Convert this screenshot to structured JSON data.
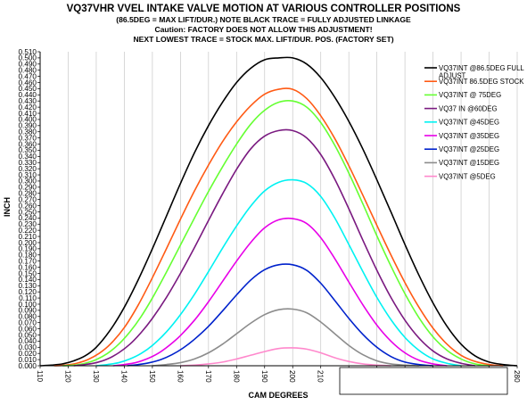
{
  "title_lines": [
    "VQ37VHR VVEL INTAKE VALVE MOTION AT VARIOUS CONTROLLER POSITIONS",
    "(86.5DEG = MAX  LIFT/DUR.) NOTE BLACK TRACE = FULLY ADJUSTED LINKAGE",
    "Caution: FACTORY DOES NOT ALLOW THIS ADJUSTMENT!",
    "NEXT LOWEST TRACE = STOCK MAX. LIFT/DUR.  POS. (FACTORY SET)"
  ],
  "chart_data": {
    "type": "line",
    "title": "VQ37VHR VVEL INTAKE VALVE MOTION AT VARIOUS CONTROLLER POSITIONS",
    "xlabel": "CAM DEGREES",
    "ylabel": "INCH",
    "xlim": [
      110,
      280
    ],
    "ylim": [
      0,
      0.51
    ],
    "xticks": [
      110,
      120,
      130,
      140,
      150,
      160,
      170,
      180,
      190,
      200,
      210,
      220,
      230,
      240,
      250,
      260,
      270,
      280
    ],
    "yticks": [
      "0.000",
      "0.010",
      "0.020",
      "0.030",
      "0.040",
      "0.050",
      "0.060",
      "0.070",
      "0.080",
      "0.090",
      "0.100",
      "0.110",
      "0.120",
      "0.130",
      "0.140",
      "0.150",
      "0.160",
      "0.170",
      "0.180",
      "0.190",
      "0.200",
      "0.210",
      "0.220",
      "0.230",
      "0.240",
      "0.250",
      "0.260",
      "0.270",
      "0.280",
      "0.290",
      "0.300",
      "0.310",
      "0.320",
      "0.330",
      "0.340",
      "0.350",
      "0.360",
      "0.370",
      "0.380",
      "0.390",
      "0.400",
      "0.410",
      "0.420",
      "0.430",
      "0.440",
      "0.450",
      "0.460",
      "0.470",
      "0.480",
      "0.490",
      "0.500",
      "0.510"
    ],
    "grid": "vertical",
    "legend_position": "right",
    "series": [
      {
        "name": "VQ37INT @86.5DEG FULL ADJUST",
        "color": "#000000",
        "x": [
          110,
          114,
          118,
          122,
          126,
          130,
          135,
          140,
          145,
          150,
          155,
          160,
          165,
          170,
          175,
          180,
          185,
          190,
          195,
          200,
          205,
          210,
          215,
          220,
          225,
          230,
          235,
          240,
          245,
          250,
          255,
          260,
          265,
          270,
          275,
          280
        ],
        "y": [
          0,
          0.001,
          0.003,
          0.008,
          0.016,
          0.03,
          0.058,
          0.095,
          0.14,
          0.19,
          0.243,
          0.296,
          0.346,
          0.39,
          0.428,
          0.46,
          0.483,
          0.497,
          0.5,
          0.5,
          0.49,
          0.468,
          0.436,
          0.397,
          0.352,
          0.302,
          0.25,
          0.197,
          0.147,
          0.102,
          0.064,
          0.035,
          0.016,
          0.006,
          0.002,
          0
        ]
      },
      {
        "name": "VQ37INT 86.5DEG STOCK",
        "color": "#ff5a14",
        "x": [
          115,
          119,
          123,
          127,
          131,
          135,
          140,
          145,
          150,
          155,
          160,
          165,
          170,
          175,
          180,
          185,
          190,
          195,
          200,
          205,
          210,
          215,
          220,
          225,
          230,
          235,
          240,
          245,
          250,
          255,
          260,
          265,
          270,
          275
        ],
        "y": [
          0,
          0.001,
          0.004,
          0.01,
          0.02,
          0.035,
          0.062,
          0.099,
          0.143,
          0.19,
          0.238,
          0.284,
          0.326,
          0.364,
          0.396,
          0.422,
          0.441,
          0.449,
          0.449,
          0.434,
          0.406,
          0.369,
          0.325,
          0.277,
          0.228,
          0.18,
          0.135,
          0.095,
          0.061,
          0.035,
          0.017,
          0.007,
          0.002,
          0
        ]
      },
      {
        "name": "VQ37INT @ 75DEG",
        "color": "#66ff33",
        "x": [
          118,
          122,
          126,
          130,
          134,
          138,
          142,
          146,
          150,
          155,
          160,
          165,
          170,
          175,
          180,
          185,
          190,
          195,
          200,
          205,
          210,
          215,
          220,
          225,
          230,
          235,
          240,
          245,
          250,
          255,
          260,
          265,
          270
        ],
        "y": [
          0,
          0.001,
          0.004,
          0.01,
          0.02,
          0.035,
          0.055,
          0.08,
          0.11,
          0.152,
          0.196,
          0.24,
          0.283,
          0.323,
          0.36,
          0.392,
          0.415,
          0.428,
          0.43,
          0.42,
          0.395,
          0.358,
          0.313,
          0.263,
          0.211,
          0.162,
          0.117,
          0.078,
          0.047,
          0.025,
          0.011,
          0.003,
          0
        ]
      },
      {
        "name": "VQ37 IN @60DEG",
        "color": "#7a1a80",
        "x": [
          122,
          126,
          130,
          134,
          138,
          142,
          146,
          150,
          155,
          160,
          165,
          170,
          175,
          180,
          185,
          190,
          195,
          200,
          205,
          210,
          215,
          220,
          225,
          230,
          235,
          240,
          245,
          250,
          255,
          260,
          265
        ],
        "y": [
          0,
          0.002,
          0.005,
          0.011,
          0.021,
          0.035,
          0.054,
          0.077,
          0.111,
          0.15,
          0.192,
          0.236,
          0.279,
          0.319,
          0.352,
          0.373,
          0.382,
          0.382,
          0.37,
          0.343,
          0.303,
          0.255,
          0.204,
          0.155,
          0.111,
          0.074,
          0.045,
          0.024,
          0.011,
          0.004,
          0
        ]
      },
      {
        "name": "VQ37INT @45DEG",
        "color": "#00f2f2",
        "x": [
          130,
          134,
          138,
          142,
          146,
          150,
          155,
          160,
          165,
          170,
          175,
          180,
          185,
          190,
          195,
          200,
          205,
          210,
          215,
          220,
          225,
          230,
          235,
          240,
          245,
          250,
          255,
          260
        ],
        "y": [
          0,
          0.002,
          0.005,
          0.011,
          0.02,
          0.033,
          0.055,
          0.083,
          0.116,
          0.153,
          0.191,
          0.227,
          0.259,
          0.284,
          0.298,
          0.302,
          0.296,
          0.275,
          0.24,
          0.197,
          0.153,
          0.111,
          0.075,
          0.046,
          0.025,
          0.011,
          0.004,
          0
        ]
      },
      {
        "name": "VQ37INT @35DEG",
        "color": "#e800e8",
        "x": [
          136,
          140,
          144,
          148,
          152,
          156,
          160,
          165,
          170,
          175,
          180,
          185,
          190,
          195,
          200,
          205,
          210,
          215,
          220,
          225,
          230,
          235,
          240,
          245,
          250,
          255
        ],
        "y": [
          0,
          0.002,
          0.005,
          0.011,
          0.02,
          0.033,
          0.049,
          0.074,
          0.104,
          0.137,
          0.17,
          0.2,
          0.224,
          0.237,
          0.239,
          0.231,
          0.208,
          0.174,
          0.136,
          0.099,
          0.066,
          0.04,
          0.021,
          0.009,
          0.003,
          0
        ]
      },
      {
        "name": "VQ37INT @25DEG",
        "color": "#0022cc",
        "x": [
          141,
          145,
          149,
          153,
          157,
          161,
          165,
          170,
          175,
          180,
          185,
          190,
          195,
          200,
          205,
          210,
          215,
          220,
          225,
          230,
          235,
          240,
          245,
          250
        ],
        "y": [
          0,
          0.002,
          0.005,
          0.01,
          0.018,
          0.029,
          0.043,
          0.064,
          0.089,
          0.115,
          0.139,
          0.156,
          0.164,
          0.164,
          0.155,
          0.134,
          0.106,
          0.077,
          0.051,
          0.03,
          0.015,
          0.006,
          0.002,
          0
        ]
      },
      {
        "name": "VQ37INT @15DEG",
        "color": "#8c8c8c",
        "x": [
          150,
          155,
          160,
          165,
          170,
          175,
          180,
          185,
          190,
          195,
          200,
          205,
          210,
          215,
          220,
          225,
          230,
          235,
          240,
          245
        ],
        "y": [
          0,
          0.002,
          0.005,
          0.011,
          0.021,
          0.035,
          0.052,
          0.069,
          0.083,
          0.091,
          0.092,
          0.086,
          0.071,
          0.052,
          0.033,
          0.018,
          0.008,
          0.003,
          0.001,
          0
        ]
      },
      {
        "name": "VQ37INT @5DEG",
        "color": "#ff88cc",
        "x": [
          160,
          165,
          170,
          175,
          180,
          185,
          190,
          195,
          200,
          205,
          210,
          215,
          220,
          225,
          230,
          235
        ],
        "y": [
          0,
          0.001,
          0.003,
          0.006,
          0.011,
          0.017,
          0.023,
          0.028,
          0.029,
          0.027,
          0.021,
          0.013,
          0.007,
          0.003,
          0.001,
          0
        ]
      }
    ]
  }
}
